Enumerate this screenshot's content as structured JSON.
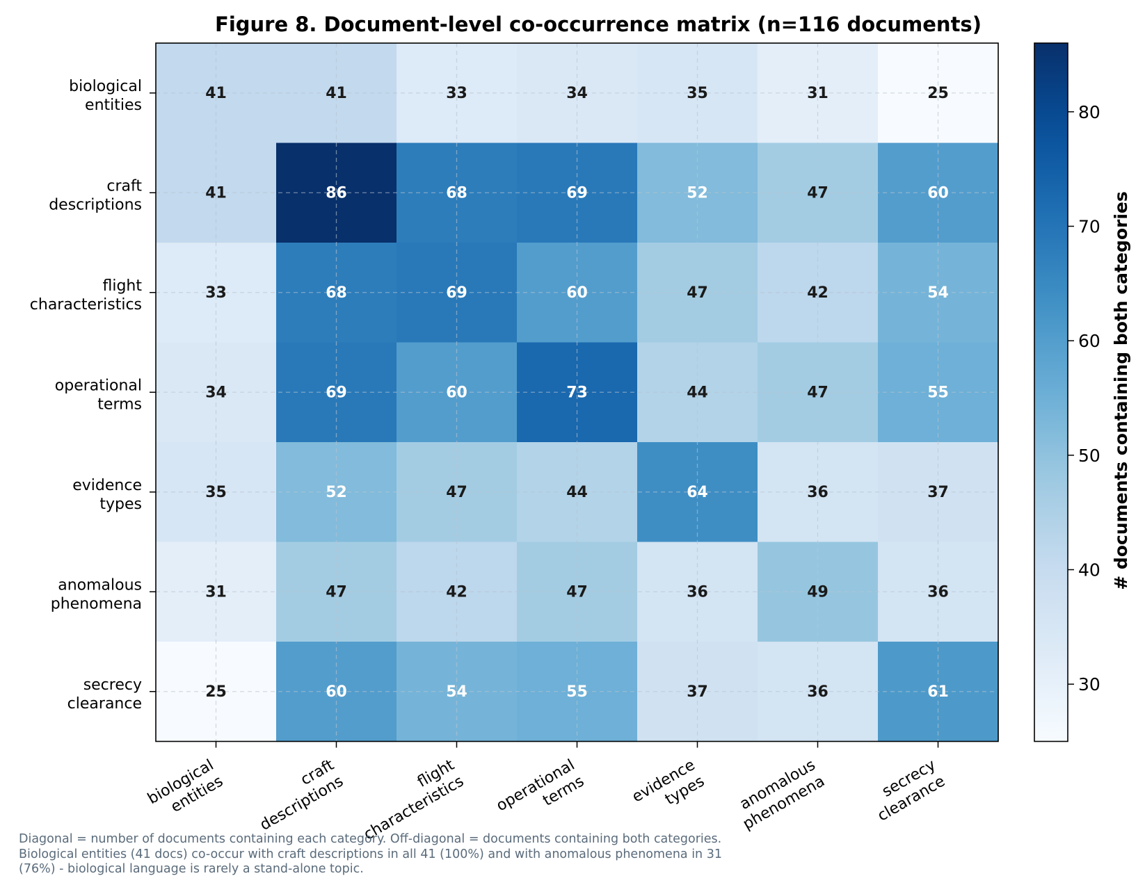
{
  "chart_data": {
    "type": "heatmap",
    "title": "Figure 8. Document-level co-occurrence matrix (n=116 documents)",
    "row_labels": [
      [
        "biological",
        "entities"
      ],
      [
        "craft",
        "descriptions"
      ],
      [
        "flight",
        "characteristics"
      ],
      [
        "operational",
        "terms"
      ],
      [
        "evidence",
        "types"
      ],
      [
        "anomalous",
        "phenomena"
      ],
      [
        "secrecy",
        "clearance"
      ]
    ],
    "col_labels": [
      [
        "biological",
        "entities"
      ],
      [
        "craft",
        "descriptions"
      ],
      [
        "flight",
        "characteristics"
      ],
      [
        "operational",
        "terms"
      ],
      [
        "evidence",
        "types"
      ],
      [
        "anomalous",
        "phenomena"
      ],
      [
        "secrecy",
        "clearance"
      ]
    ],
    "values": [
      [
        41,
        41,
        33,
        34,
        35,
        31,
        25
      ],
      [
        41,
        86,
        68,
        69,
        52,
        47,
        60
      ],
      [
        33,
        68,
        69,
        60,
        47,
        42,
        54
      ],
      [
        34,
        69,
        60,
        73,
        44,
        47,
        55
      ],
      [
        35,
        52,
        47,
        44,
        64,
        36,
        37
      ],
      [
        31,
        47,
        42,
        47,
        36,
        49,
        36
      ],
      [
        25,
        60,
        54,
        55,
        37,
        36,
        61
      ]
    ],
    "colorbar": {
      "label": "# documents containing both categories",
      "min": 25,
      "max": 86,
      "ticks": [
        30,
        40,
        50,
        60,
        70,
        80
      ],
      "colormap": "Blues"
    },
    "grid": true
  },
  "caption": "Diagonal = number of documents containing each category. Off-diagonal = documents containing both categories.\nBiological entities (41 docs) co-occur with craft descriptions in all 41 (100%) and with anomalous phenomena in 31\n(76%) - biological language is rarely a stand-alone topic.",
  "colors": {
    "text_dark": "#1a1a1a",
    "text_light": "#ffffff",
    "caption": "#5a6b7b"
  }
}
